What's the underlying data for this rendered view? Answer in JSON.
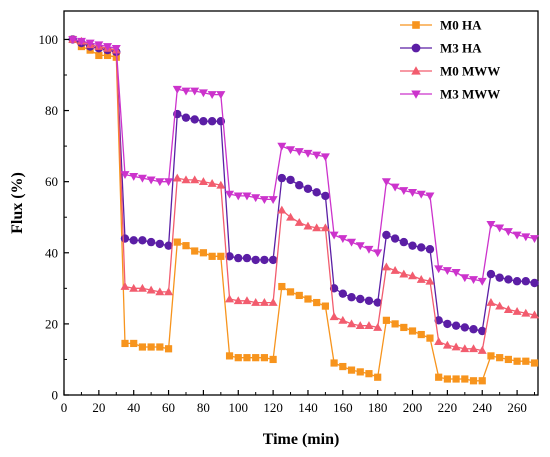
{
  "chart_data": {
    "type": "line",
    "title": "",
    "xlabel": "Time (min)",
    "ylabel": "Flux (%)",
    "xlim": [
      0,
      272
    ],
    "ylim": [
      0,
      108
    ],
    "xticks": [
      0,
      20,
      40,
      60,
      80,
      100,
      120,
      140,
      160,
      180,
      200,
      220,
      240,
      260
    ],
    "yticks": [
      0,
      20,
      40,
      60,
      80,
      100
    ],
    "grid": false,
    "legend_position": "top-right",
    "series": [
      {
        "name": "M0 HA",
        "color": "#f7941d",
        "marker": "square",
        "x": [
          5,
          10,
          15,
          20,
          25,
          30,
          35,
          40,
          45,
          50,
          55,
          60,
          65,
          70,
          75,
          80,
          85,
          90,
          95,
          100,
          105,
          110,
          115,
          120,
          125,
          130,
          135,
          140,
          145,
          150,
          155,
          160,
          165,
          170,
          175,
          180,
          185,
          190,
          195,
          200,
          205,
          210,
          215,
          220,
          225,
          230,
          235,
          240,
          245,
          250,
          255,
          260,
          265,
          270
        ],
        "y": [
          100,
          98,
          97,
          95.5,
          95.5,
          95,
          14.5,
          14.5,
          13.5,
          13.5,
          13.5,
          13,
          43,
          42,
          40.5,
          40,
          39,
          39,
          11,
          10.5,
          10.5,
          10.5,
          10.5,
          10,
          30.5,
          29,
          28,
          27,
          26,
          25,
          9,
          8,
          7,
          6.5,
          6,
          5,
          21,
          20,
          19,
          18,
          17,
          16,
          5,
          4.5,
          4.5,
          4.5,
          4,
          4,
          11,
          10.5,
          10,
          9.5,
          9.5,
          9
        ]
      },
      {
        "name": "M3 HA",
        "color": "#5b1ea5",
        "marker": "circle",
        "x": [
          5,
          10,
          15,
          20,
          25,
          30,
          35,
          40,
          45,
          50,
          55,
          60,
          65,
          70,
          75,
          80,
          85,
          90,
          95,
          100,
          105,
          110,
          115,
          120,
          125,
          130,
          135,
          140,
          145,
          150,
          155,
          160,
          165,
          170,
          175,
          180,
          185,
          190,
          195,
          200,
          205,
          210,
          215,
          220,
          225,
          230,
          235,
          240,
          245,
          250,
          255,
          260,
          265,
          270
        ],
        "y": [
          100,
          99,
          98,
          97.5,
          97,
          96.5,
          44,
          43.5,
          43.5,
          43,
          42.5,
          42,
          79,
          78,
          77.5,
          77,
          77,
          77,
          39,
          38.5,
          38.5,
          38,
          38,
          38,
          61,
          60.5,
          59,
          58,
          57,
          56,
          30,
          28.5,
          27.5,
          27,
          26.5,
          26,
          45,
          44,
          43,
          42,
          41.5,
          41,
          21,
          20,
          19.5,
          19,
          18.5,
          18,
          34,
          33,
          32.5,
          32,
          32,
          31.5
        ]
      },
      {
        "name": "M0 MWW",
        "color": "#f25c6e",
        "marker": "triangle-up",
        "x": [
          5,
          10,
          15,
          20,
          25,
          30,
          35,
          40,
          45,
          50,
          55,
          60,
          65,
          70,
          75,
          80,
          85,
          90,
          95,
          100,
          105,
          110,
          115,
          120,
          125,
          130,
          135,
          140,
          145,
          150,
          155,
          160,
          165,
          170,
          175,
          180,
          185,
          190,
          195,
          200,
          205,
          210,
          215,
          220,
          225,
          230,
          235,
          240,
          245,
          250,
          255,
          260,
          265,
          270
        ],
        "y": [
          100,
          99.5,
          98.5,
          98,
          97.5,
          97,
          30.5,
          30,
          30,
          29.5,
          29,
          29,
          61,
          60.5,
          60.5,
          60,
          59.5,
          59,
          27,
          26.5,
          26.5,
          26,
          26,
          26,
          52,
          50,
          48.5,
          47.5,
          47,
          47,
          22,
          21,
          20,
          19.5,
          19.5,
          19,
          36,
          35,
          34,
          33.5,
          32.5,
          32,
          15,
          14,
          13.5,
          13,
          13,
          12.5,
          26,
          25,
          24,
          23.5,
          23,
          22.5
        ]
      },
      {
        "name": "M3 MWW",
        "color": "#cc33cc",
        "marker": "triangle-down",
        "x": [
          5,
          10,
          15,
          20,
          25,
          30,
          35,
          40,
          45,
          50,
          55,
          60,
          65,
          70,
          75,
          80,
          85,
          90,
          95,
          100,
          105,
          110,
          115,
          120,
          125,
          130,
          135,
          140,
          145,
          150,
          155,
          160,
          165,
          170,
          175,
          180,
          185,
          190,
          195,
          200,
          205,
          210,
          215,
          220,
          225,
          230,
          235,
          240,
          245,
          250,
          255,
          260,
          265,
          270
        ],
        "y": [
          100,
          99.5,
          99,
          98.5,
          98,
          97.5,
          62,
          61.5,
          61,
          60.5,
          60,
          60,
          86,
          85.5,
          85.5,
          85,
          84.5,
          84.5,
          56.5,
          56,
          56,
          55.5,
          55,
          55,
          70,
          69,
          68.5,
          68,
          67.5,
          67,
          45,
          44,
          43,
          42,
          41,
          40,
          60,
          58.5,
          57.5,
          57,
          56.5,
          56,
          35.5,
          35,
          34.5,
          33,
          32.5,
          32,
          48,
          47,
          46,
          45,
          44.5,
          44
        ]
      }
    ]
  }
}
